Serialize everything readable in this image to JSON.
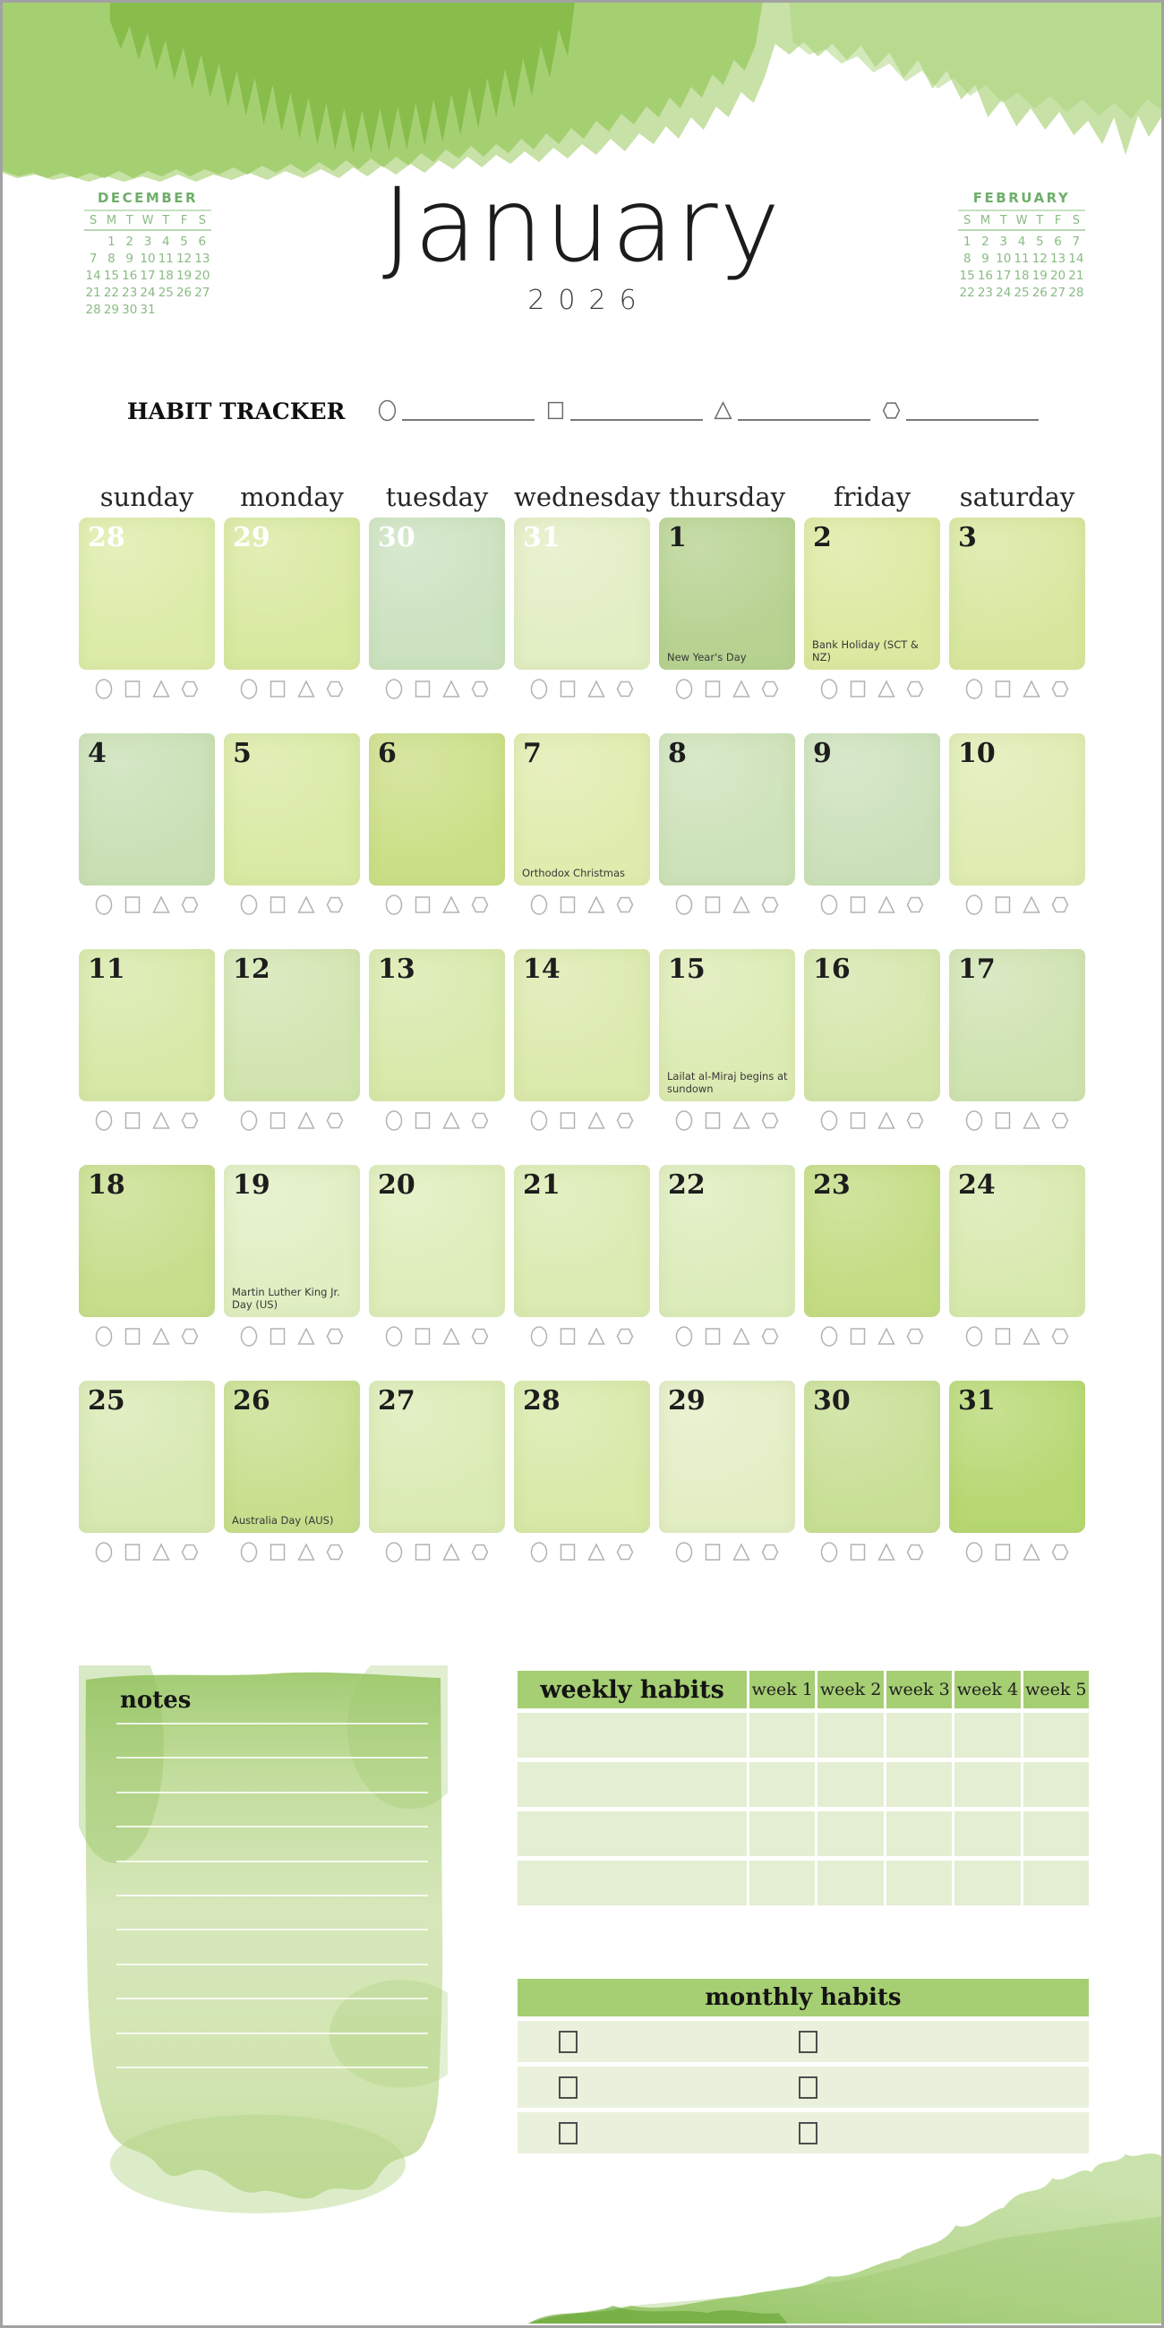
{
  "title": {
    "month": "January",
    "year": "2026"
  },
  "mini_calendars": {
    "left": {
      "title": "DECEMBER",
      "day_headers": [
        "S",
        "M",
        "T",
        "W",
        "T",
        "F",
        "S"
      ],
      "days": [
        "",
        "1",
        "2",
        "3",
        "4",
        "5",
        "6",
        "7",
        "8",
        "9",
        "10",
        "11",
        "12",
        "13",
        "14",
        "15",
        "16",
        "17",
        "18",
        "19",
        "20",
        "21",
        "22",
        "23",
        "24",
        "25",
        "26",
        "27",
        "28",
        "29",
        "30",
        "31"
      ]
    },
    "right": {
      "title": "FEBRUARY",
      "day_headers": [
        "S",
        "M",
        "T",
        "W",
        "T",
        "F",
        "S"
      ],
      "days": [
        "1",
        "2",
        "3",
        "4",
        "5",
        "6",
        "7",
        "8",
        "9",
        "10",
        "11",
        "12",
        "13",
        "14",
        "15",
        "16",
        "17",
        "18",
        "19",
        "20",
        "21",
        "22",
        "23",
        "24",
        "25",
        "26",
        "27",
        "28"
      ]
    }
  },
  "habit_tracker": {
    "label": "HABIT TRACKER",
    "shapes": [
      "circle",
      "square",
      "triangle",
      "hexagon"
    ]
  },
  "calendar": {
    "day_headers": [
      "sunday",
      "monday",
      "tuesday",
      "wednesday",
      "thursday",
      "friday",
      "saturday"
    ],
    "cell_shapes": [
      "circle",
      "square",
      "triangle",
      "hexagon"
    ],
    "weeks": [
      [
        {
          "day": "28",
          "outside": true,
          "bg": "#dceca8"
        },
        {
          "day": "29",
          "outside": true,
          "bg": "#d8e9a0"
        },
        {
          "day": "30",
          "outside": true,
          "bg": "#cce2c0"
        },
        {
          "day": "31",
          "outside": true,
          "bg": "#e2eec4"
        },
        {
          "day": "1",
          "bg": "#b7d291",
          "holiday": "New Year's Day"
        },
        {
          "day": "2",
          "bg": "#dde9a1",
          "holiday": "Bank Holiday (SCT & NZ)"
        },
        {
          "day": "3",
          "bg": "#d8e79e"
        }
      ],
      [
        {
          "day": "4",
          "bg": "#c9e0b5"
        },
        {
          "day": "5",
          "bg": "#d9eaa4"
        },
        {
          "day": "6",
          "bg": "#cbdf87"
        },
        {
          "day": "7",
          "bg": "#e0ecae",
          "holiday": "Orthodox Christmas"
        },
        {
          "day": "8",
          "bg": "#cde2b9"
        },
        {
          "day": "9",
          "bg": "#cce1bb"
        },
        {
          "day": "10",
          "bg": "#dfecb2"
        }
      ],
      [
        {
          "day": "11",
          "bg": "#d7e8a7"
        },
        {
          "day": "12",
          "bg": "#d2e5b0"
        },
        {
          "day": "13",
          "bg": "#d8e9ab"
        },
        {
          "day": "14",
          "bg": "#dbeaad"
        },
        {
          "day": "15",
          "bg": "#dcebb3",
          "holiday": "Lailat al-Miraj begins at sundown"
        },
        {
          "day": "16",
          "bg": "#d5e6ab"
        },
        {
          "day": "17",
          "bg": "#cfe3b1"
        }
      ],
      [
        {
          "day": "18",
          "bg": "#c7de8c"
        },
        {
          "day": "19",
          "bg": "#e0eec2",
          "holiday": "Martin Luther King Jr. Day (US)"
        },
        {
          "day": "20",
          "bg": "#deedba"
        },
        {
          "day": "21",
          "bg": "#dbebb2"
        },
        {
          "day": "22",
          "bg": "#ddecbb"
        },
        {
          "day": "23",
          "bg": "#c4dc83"
        },
        {
          "day": "24",
          "bg": "#d8e9ae"
        }
      ],
      [
        {
          "day": "25",
          "bg": "#d8e9b2"
        },
        {
          "day": "26",
          "bg": "#c7df8d",
          "holiday": "Australia Day (AUS)"
        },
        {
          "day": "27",
          "bg": "#dbebb4"
        },
        {
          "day": "28",
          "bg": "#d8e9a8"
        },
        {
          "day": "29",
          "bg": "#e3eec5"
        },
        {
          "day": "30",
          "bg": "#c8df95"
        },
        {
          "day": "31",
          "bg": "#b7d872"
        }
      ]
    ]
  },
  "notes": {
    "title": "notes",
    "line_count": 11
  },
  "weekly_habits": {
    "title": "weekly habits",
    "columns": [
      "week 1",
      "week 2",
      "week 3",
      "week 4",
      "week 5"
    ],
    "row_count": 4
  },
  "monthly_habits": {
    "title": "monthly habits",
    "row_count": 3,
    "checkboxes_per_row": 2
  },
  "colors": {
    "header_green": "#a6ce73",
    "table_row_green": "#e3eed2",
    "mini_calendar_green": "#85ba80",
    "watercolor_green": "#76b233"
  }
}
